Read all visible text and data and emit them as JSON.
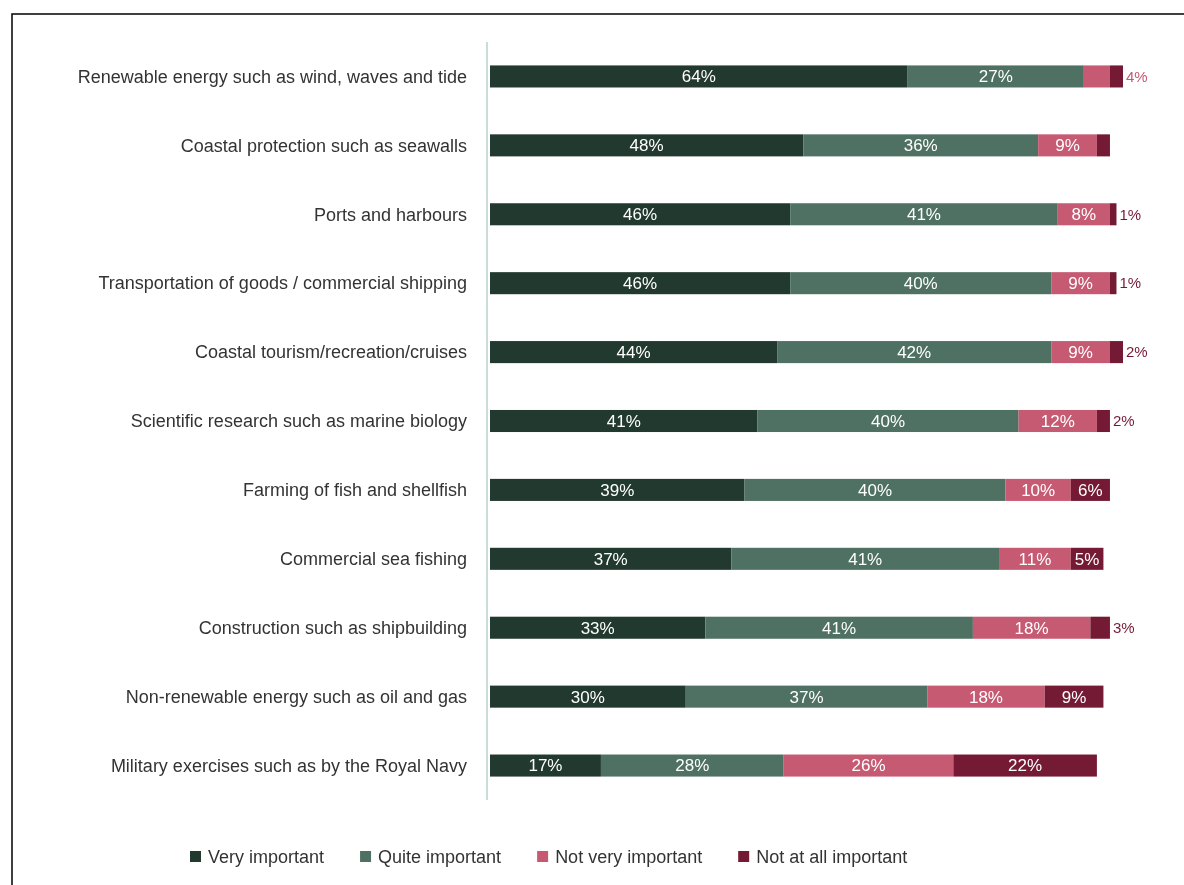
{
  "chart_data": {
    "type": "bar",
    "orientation": "horizontal",
    "stacked": true,
    "legend": "bottom",
    "categories": [
      "Renewable energy such as wind, waves and tide",
      "Coastal protection such as seawalls",
      "Ports and harbours",
      "Transportation of goods / commercial shipping",
      "Coastal tourism/recreation/cruises",
      "Scientific research such as marine biology",
      "Farming of fish and shellfish",
      "Commercial sea fishing",
      "Construction such as shipbuilding",
      "Non-renewable energy such as oil and gas",
      "Military exercises such as by the Royal Navy"
    ],
    "series": [
      {
        "name": "Very important",
        "color": "#22392f",
        "values": [
          64,
          48,
          46,
          46,
          44,
          41,
          39,
          37,
          33,
          30,
          17
        ],
        "value_labels": [
          "64%",
          "48%",
          "46%",
          "46%",
          "44%",
          "41%",
          "39%",
          "37%",
          "33%",
          "30%",
          "17%"
        ]
      },
      {
        "name": "Quite important",
        "color": "#4e7163",
        "values": [
          27,
          36,
          41,
          40,
          42,
          40,
          40,
          41,
          41,
          37,
          28
        ],
        "value_labels": [
          "27%",
          "36%",
          "41%",
          "40%",
          "42%",
          "40%",
          "40%",
          "41%",
          "41%",
          "37%",
          "28%"
        ]
      },
      {
        "name": "Not very important",
        "color": "#c65a72",
        "values": [
          4,
          9,
          8,
          9,
          9,
          12,
          10,
          11,
          18,
          18,
          26
        ],
        "value_labels": [
          "4%",
          "9%",
          "8%",
          "9%",
          "9%",
          "12%",
          "10%",
          "11%",
          "18%",
          "18%",
          "26%"
        ]
      },
      {
        "name": "Not at all important",
        "color": "#741a34",
        "values": [
          2,
          2,
          1,
          1,
          2,
          2,
          6,
          5,
          3,
          9,
          22
        ],
        "value_labels": [
          null,
          null,
          "1%",
          "1%",
          "2%",
          "2%",
          "6%",
          "5%",
          "3%",
          "9%",
          "22%"
        ]
      }
    ]
  }
}
